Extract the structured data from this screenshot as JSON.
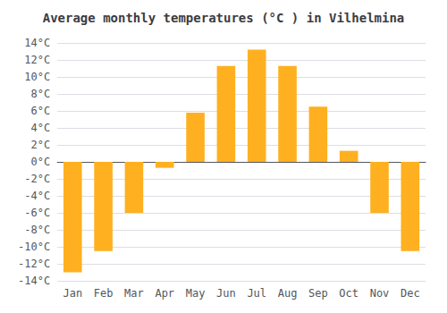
{
  "chart_data": {
    "type": "bar",
    "title": "Average monthly temperatures (°C ) in Vilhelmina",
    "categories": [
      "Jan",
      "Feb",
      "Mar",
      "Apr",
      "May",
      "Jun",
      "Jul",
      "Aug",
      "Sep",
      "Oct",
      "Nov",
      "Dec"
    ],
    "values": [
      -13,
      -10.5,
      -6,
      -0.7,
      5.8,
      11.3,
      13.2,
      11.3,
      6.5,
      1.3,
      -6,
      -10.5
    ],
    "color": "#FFB020",
    "ylim": [
      -14,
      14
    ],
    "yticks": [
      {
        "value": -14,
        "label": "-14°C"
      },
      {
        "value": -12,
        "label": "-12°C"
      },
      {
        "value": -10,
        "label": "-10°C"
      },
      {
        "value": -8,
        "label": "-8°C"
      },
      {
        "value": -6,
        "label": "-6°C"
      },
      {
        "value": -4,
        "label": "-4°C"
      },
      {
        "value": -2,
        "label": "-2°C"
      },
      {
        "value": 0,
        "label": "0°C"
      },
      {
        "value": 2,
        "label": "2°C"
      },
      {
        "value": 4,
        "label": "4°C"
      },
      {
        "value": 6,
        "label": "6°C"
      },
      {
        "value": 8,
        "label": "8°C"
      },
      {
        "value": 10,
        "label": "10°C"
      },
      {
        "value": 12,
        "label": "12°C"
      },
      {
        "value": 14,
        "label": "14°C"
      }
    ],
    "grid": true
  }
}
